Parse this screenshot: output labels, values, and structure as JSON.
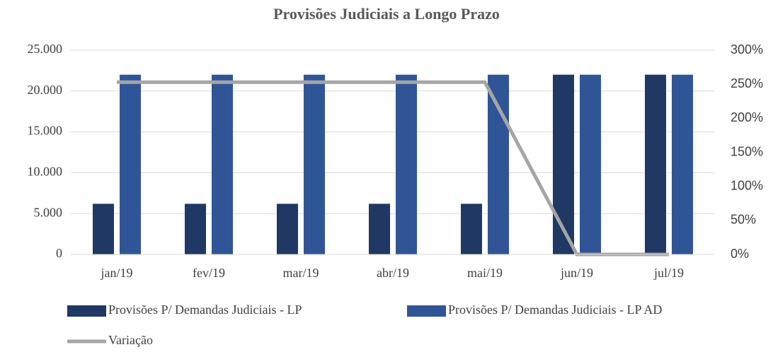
{
  "chart_data": {
    "type": "bar",
    "title": "Provisões Judiciais a Longo Prazo",
    "categories": [
      "jan/19",
      "fev/19",
      "mar/19",
      "abr/19",
      "mai/19",
      "jun/19",
      "jul/19"
    ],
    "series": [
      {
        "name": "Provisões P/ Demandas Judiciais - LP",
        "color": "#1f3864",
        "values": [
          6200,
          6200,
          6200,
          6200,
          6200,
          22000,
          22000
        ]
      },
      {
        "name": "Provisões P/ Demandas Judiciais - LP AD",
        "color": "#2f5597",
        "values": [
          22000,
          22000,
          22000,
          22000,
          22000,
          22000,
          22000
        ]
      },
      {
        "name": "Variação",
        "color": "#a5a5a5",
        "type": "line",
        "axis": "y2",
        "values": [
          253,
          253,
          253,
          253,
          253,
          0,
          0
        ]
      }
    ],
    "ylim": [
      0,
      25000
    ],
    "yticks": [
      0,
      {
        "value": 5000,
        "label": "5.000"
      },
      {
        "value": 10000,
        "label": "10.000"
      },
      {
        "value": 15000,
        "label": "15.000"
      },
      {
        "value": 20000,
        "label": "20.000"
      },
      {
        "value": 25000,
        "label": "25.000"
      }
    ],
    "y2lim": [
      0,
      300
    ],
    "y2ticks": [
      {
        "value": 0,
        "label": "0%"
      },
      {
        "value": 50,
        "label": "50%"
      },
      {
        "value": 100,
        "label": "100%"
      },
      {
        "value": 150,
        "label": "150%"
      },
      {
        "value": 200,
        "label": "200%"
      },
      {
        "value": 250,
        "label": "250%"
      },
      {
        "value": 300,
        "label": "300%"
      }
    ],
    "grid": true
  }
}
